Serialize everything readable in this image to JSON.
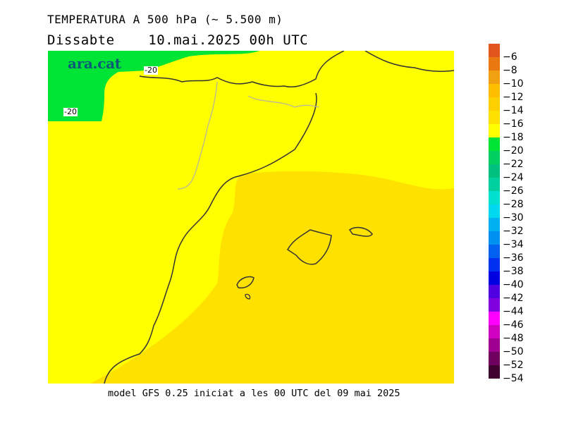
{
  "header": {
    "title": "TEMPERATURA A 500 hPa (~ 5.500 m)",
    "day": "Dissabte",
    "datetime": "10.mai.2025 00h UTC"
  },
  "footer": {
    "model_text": "model GFS 0.25 iniciat a les 00 UTC del 09 mai 2025"
  },
  "map": {
    "brand": "ara.cat",
    "contour_labels": [
      "-20",
      "-20"
    ],
    "field_colors": {
      "warm_zone": "#ffe100",
      "mid_zone": "#ffff00",
      "cold_zone": "#00e436",
      "coastline": "#333333",
      "border": "#b0b0a0"
    }
  },
  "legend": {
    "labels": [
      "-6",
      "-8",
      "-10",
      "-12",
      "-14",
      "-16",
      "-18",
      "-20",
      "-22",
      "-24",
      "-26",
      "-28",
      "-30",
      "-32",
      "-34",
      "-36",
      "-38",
      "-40",
      "-42",
      "-44",
      "-46",
      "-48",
      "-50",
      "-52",
      "-54"
    ],
    "colors": [
      "#e2561e",
      "#e8780f",
      "#f0a010",
      "#ffbf00",
      "#ffd000",
      "#ffe100",
      "#ffff00",
      "#00e436",
      "#00d060",
      "#00c080",
      "#00d0a0",
      "#00e0d0",
      "#00d8f0",
      "#00b0f0",
      "#0090f0",
      "#0060f0",
      "#0030f0",
      "#0000e0",
      "#5000e0",
      "#8000e0",
      "#ff00ff",
      "#d000c0",
      "#a00090",
      "#700060",
      "#400030"
    ]
  }
}
